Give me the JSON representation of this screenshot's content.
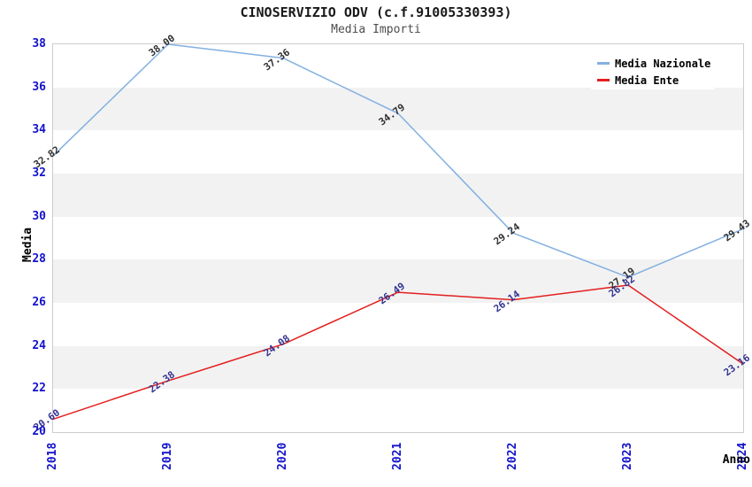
{
  "chart_data": {
    "type": "line",
    "title": "CINOSERVIZIO ODV (c.f.91005330393)",
    "subtitle": "Media Importi",
    "xlabel": "Anno",
    "ylabel": "Media",
    "x": [
      2018,
      2019,
      2020,
      2021,
      2022,
      2023,
      2024
    ],
    "series": [
      {
        "name": "Media Nazionale",
        "color": "#82B0E2",
        "label_color": "#303030",
        "values": [
          32.82,
          38.0,
          37.36,
          34.79,
          29.24,
          27.19,
          29.43
        ]
      },
      {
        "name": "Media Ente",
        "color": "#E41E1E",
        "label_color": "#333392",
        "values": [
          20.6,
          22.38,
          24.08,
          26.49,
          26.14,
          26.82,
          23.16
        ]
      }
    ],
    "ylim": [
      20,
      38
    ],
    "yticks": [
      38,
      36,
      34,
      32,
      30,
      28,
      26,
      24,
      22,
      20
    ],
    "value_label_decimals": 2,
    "grid": "alternating-horizontal-bands",
    "legend_position": "top-right"
  },
  "colors": {
    "axis_tick_labels": "#1212CC",
    "band_stripe": "#F2F2F2",
    "plot_border": "#CCCCCC",
    "title": "#1A1A1A",
    "subtitle": "#4D4D4D",
    "axis_titles": "#000000"
  }
}
